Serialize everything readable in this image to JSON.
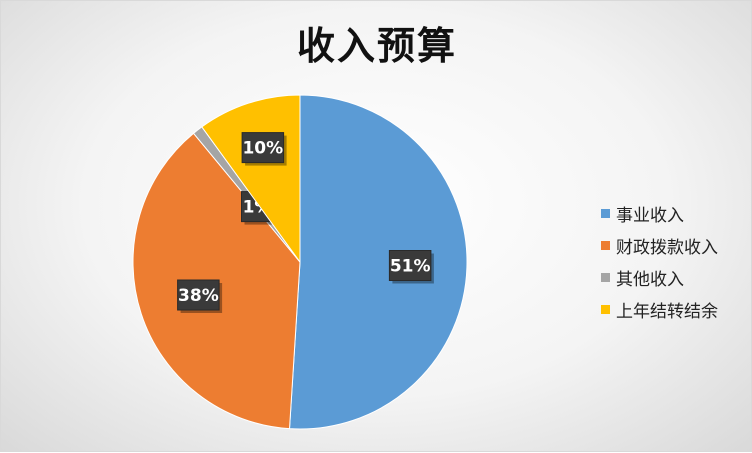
{
  "chart_data": {
    "type": "pie",
    "title": "收入预算",
    "categories": [
      "事业收入",
      "财政拨款收入",
      "其他收入",
      "上年结转结余"
    ],
    "values": [
      51,
      38,
      1,
      10
    ],
    "data_labels": [
      "51%",
      "38%",
      "1%",
      "10%"
    ],
    "colors": [
      "#5b9bd5",
      "#ed7d31",
      "#a5a5a5",
      "#ffc000"
    ],
    "legend_position": "right"
  }
}
